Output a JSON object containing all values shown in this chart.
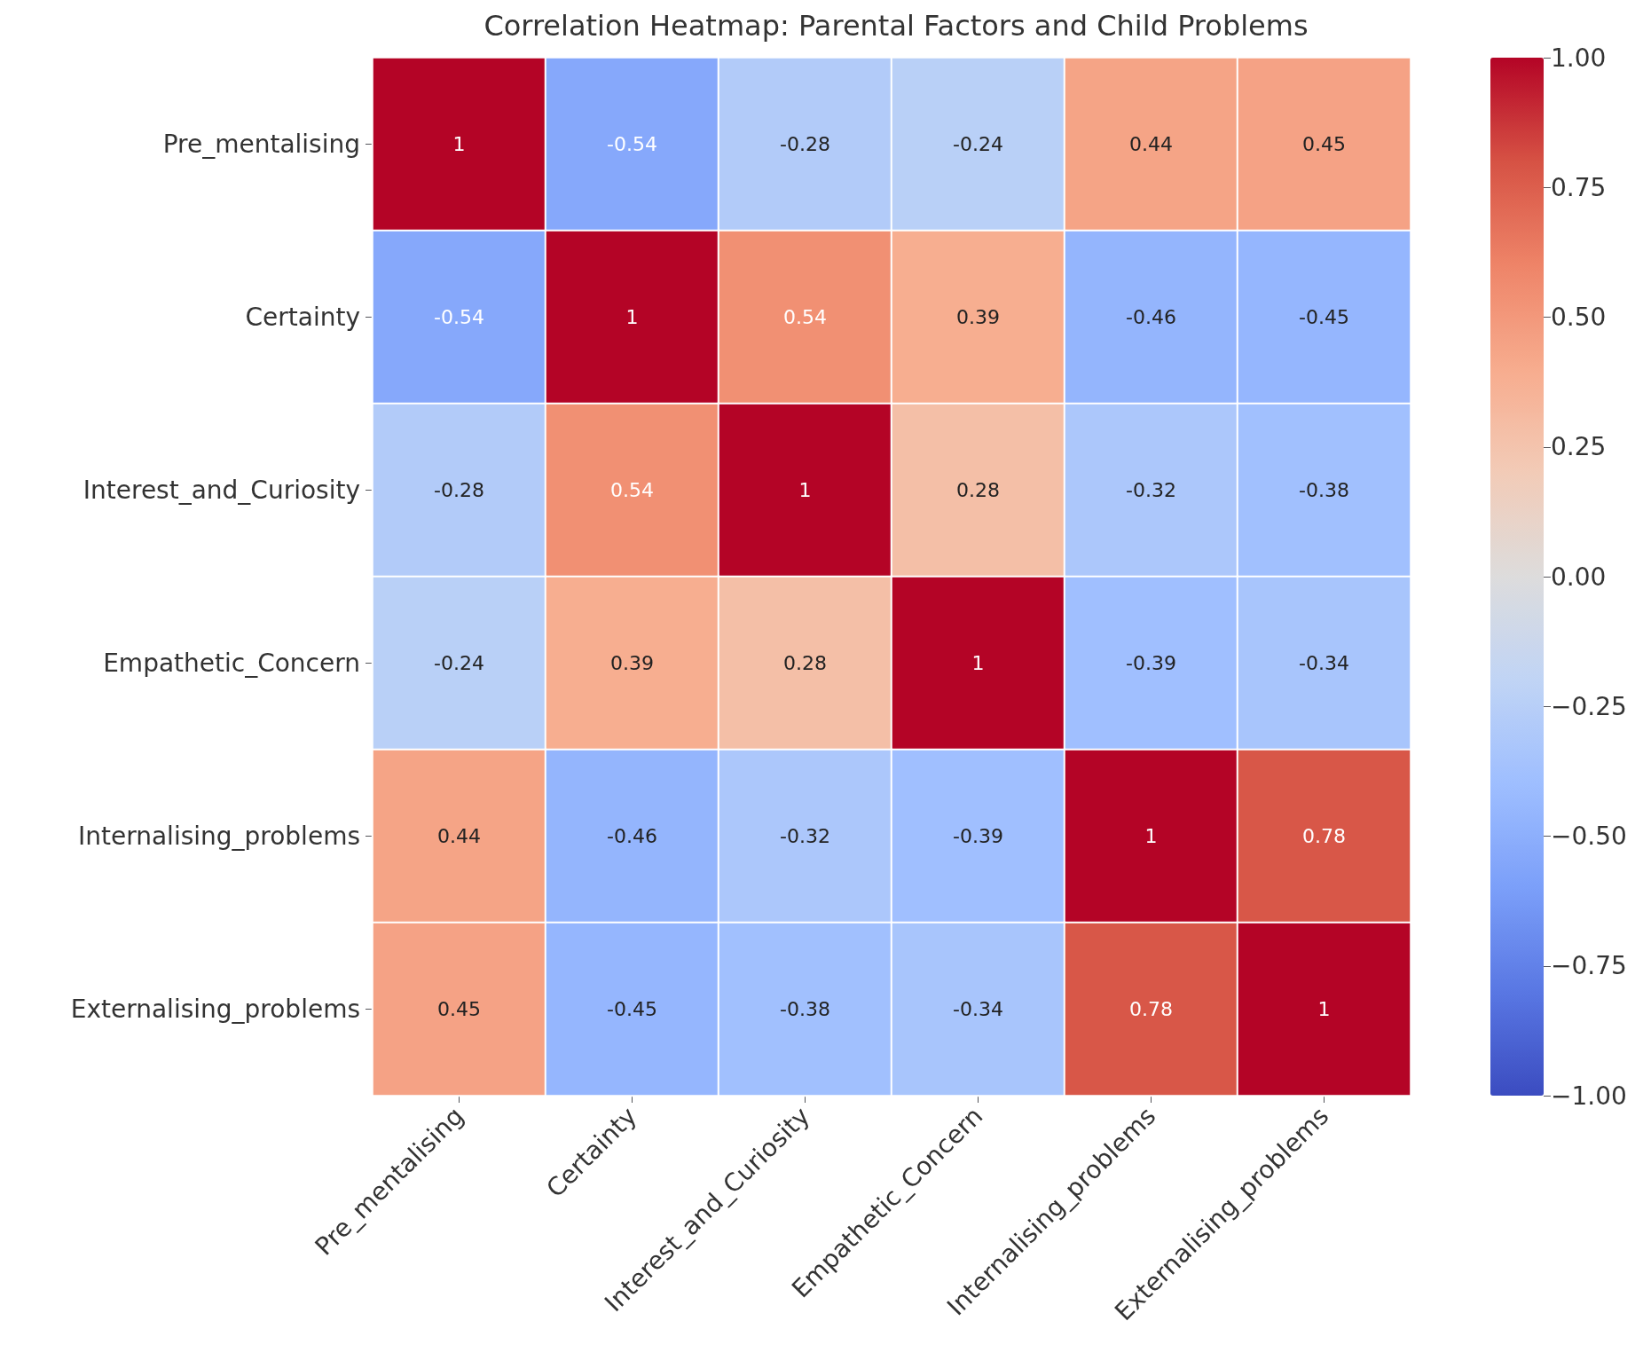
{
  "chart_data": {
    "type": "heatmap",
    "title": "Correlation Heatmap: Parental Factors and Child Problems",
    "categories": [
      "Pre_mentalising",
      "Certainty",
      "Interest_and_Curiosity",
      "Empathetic_Concern",
      "Internalising_problems",
      "Externalising_problems"
    ],
    "y_categories": [
      "Pre_mentalising",
      "Certainty",
      "Interest_and_Curiosity",
      "Empathetic_Concern",
      "Internalising_problems",
      "Externalising_problems"
    ],
    "cells": [
      [
        1,
        -0.54,
        -0.28,
        -0.24,
        0.44,
        0.45
      ],
      [
        -0.54,
        1,
        0.54,
        0.39,
        -0.46,
        -0.45
      ],
      [
        -0.28,
        0.54,
        1,
        0.28,
        -0.32,
        -0.38
      ],
      [
        -0.24,
        0.39,
        0.28,
        1,
        -0.39,
        -0.34
      ],
      [
        0.44,
        -0.46,
        -0.32,
        -0.39,
        1,
        0.78
      ],
      [
        0.45,
        -0.45,
        -0.38,
        -0.34,
        0.78,
        1
      ]
    ],
    "clim": [
      -1,
      1
    ],
    "cticks": [
      {
        "value": -1,
        "label": "−1.00"
      },
      {
        "value": -0.75,
        "label": "−0.75"
      },
      {
        "value": -0.5,
        "label": "−0.50"
      },
      {
        "value": -0.25,
        "label": "−0.25"
      },
      {
        "value": 0,
        "label": "0.00"
      },
      {
        "value": 0.25,
        "label": "0.25"
      },
      {
        "value": 0.5,
        "label": "0.50"
      },
      {
        "value": 0.75,
        "label": "0.75"
      },
      {
        "value": 1,
        "label": "1.00"
      }
    ],
    "data_labels": true
  }
}
